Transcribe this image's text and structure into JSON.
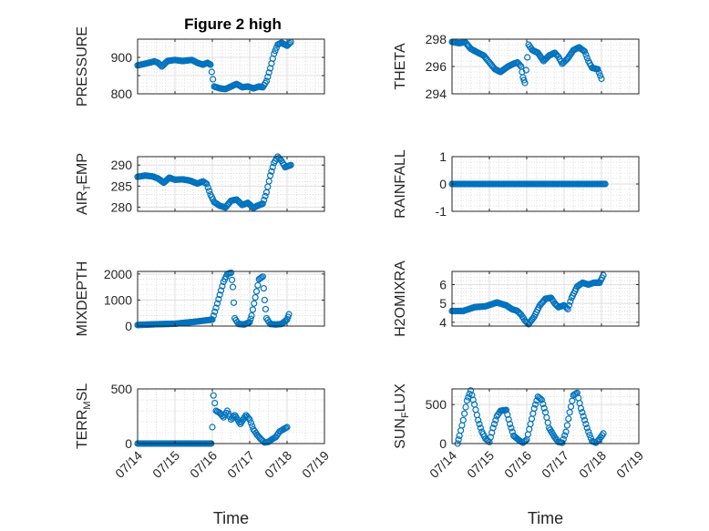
{
  "figure": {
    "title": "Figure 2 high",
    "x_axis_label": "Time",
    "x_tick_labels": [
      "07/14",
      "07/15",
      "07/16",
      "07/17",
      "07/18",
      "07/19"
    ],
    "marker_color": "#0072BD"
  },
  "chart_data": [
    {
      "type": "scatter",
      "title": "Figure 2 high",
      "ylabel": "PRESSURE",
      "ylabel_sub": "",
      "xlabel": "",
      "x_ticks": [
        "07/14",
        "07/15",
        "07/16",
        "07/17",
        "07/18",
        "07/19"
      ],
      "show_x_labels": false,
      "xlim": [
        0,
        5
      ],
      "ylim": [
        800,
        950
      ],
      "y_ticks": [
        800,
        850,
        900
      ],
      "y_tick_labels": [
        "800",
        "",
        "900"
      ],
      "grid": true,
      "minor_grid": true,
      "series": [
        {
          "keys": [
            [
              0,
              878
            ],
            [
              0.3,
              885
            ],
            [
              0.45,
              889
            ],
            [
              0.55,
              885
            ],
            [
              0.65,
              875
            ],
            [
              0.8,
              890
            ],
            [
              1.0,
              893
            ],
            [
              1.2,
              890
            ],
            [
              1.45,
              893
            ],
            [
              1.6,
              885
            ],
            [
              1.75,
              880
            ],
            [
              1.87,
              885
            ],
            [
              1.95,
              880
            ],
            [
              2.05,
              820
            ],
            [
              2.2,
              815
            ],
            [
              2.35,
              813
            ],
            [
              2.5,
              820
            ],
            [
              2.65,
              827
            ],
            [
              2.8,
              818
            ],
            [
              2.95,
              820
            ],
            [
              3.1,
              815
            ],
            [
              3.25,
              820
            ],
            [
              3.35,
              818
            ],
            [
              3.45,
              835
            ],
            [
              3.55,
              870
            ],
            [
              3.65,
              910
            ],
            [
              3.75,
              935
            ],
            [
              3.85,
              940
            ],
            [
              4.0,
              932
            ],
            [
              4.1,
              942
            ]
          ],
          "spacing": 0.03
        }
      ]
    },
    {
      "type": "scatter",
      "title": "",
      "ylabel": "THETA",
      "ylabel_sub": "",
      "xlabel": "",
      "x_ticks": [
        "07/14",
        "07/15",
        "07/16",
        "07/17",
        "07/18",
        "07/19"
      ],
      "show_x_labels": false,
      "xlim": [
        0,
        5
      ],
      "ylim": [
        294,
        298
      ],
      "y_ticks": [
        294,
        296,
        298
      ],
      "y_tick_labels": [
        "294",
        "296",
        "298"
      ],
      "grid": true,
      "minor_grid": true,
      "series": [
        {
          "keys": [
            [
              0,
              297.8
            ],
            [
              0.2,
              297.7
            ],
            [
              0.35,
              297.8
            ],
            [
              0.5,
              297.3
            ],
            [
              0.7,
              297.0
            ],
            [
              0.85,
              296.8
            ],
            [
              1.0,
              296.3
            ],
            [
              1.15,
              295.8
            ],
            [
              1.3,
              295.6
            ],
            [
              1.5,
              296.0
            ],
            [
              1.65,
              296.2
            ],
            [
              1.75,
              296.3
            ],
            [
              1.85,
              296.0
            ],
            [
              1.9,
              295.2
            ],
            [
              1.95,
              294.8
            ],
            [
              2.05,
              297.6
            ],
            [
              2.15,
              297.2
            ],
            [
              2.3,
              297.0
            ],
            [
              2.45,
              296.4
            ],
            [
              2.6,
              296.8
            ],
            [
              2.75,
              297.0
            ],
            [
              2.85,
              296.7
            ],
            [
              2.95,
              296.2
            ],
            [
              3.1,
              296.6
            ],
            [
              3.25,
              297.2
            ],
            [
              3.4,
              297.4
            ],
            [
              3.55,
              297.1
            ],
            [
              3.65,
              296.4
            ],
            [
              3.75,
              295.9
            ],
            [
              3.9,
              295.8
            ],
            [
              4.0,
              295.1
            ]
          ],
          "spacing": 0.03
        }
      ]
    },
    {
      "type": "scatter",
      "title": "",
      "ylabel": "AIR",
      "ylabel_sub": "T",
      "ylabel_after": "EMP",
      "xlabel": "",
      "x_ticks": [
        "07/14",
        "07/15",
        "07/16",
        "07/17",
        "07/18",
        "07/19"
      ],
      "show_x_labels": false,
      "xlim": [
        0,
        5
      ],
      "ylim": [
        279,
        292
      ],
      "y_ticks": [
        280,
        285,
        290
      ],
      "y_tick_labels": [
        "280",
        "285",
        "290"
      ],
      "grid": true,
      "minor_grid": true,
      "series": [
        {
          "keys": [
            [
              0,
              287.2
            ],
            [
              0.2,
              287.5
            ],
            [
              0.4,
              287.3
            ],
            [
              0.55,
              286.8
            ],
            [
              0.7,
              285.8
            ],
            [
              0.85,
              287.0
            ],
            [
              1.0,
              286.5
            ],
            [
              1.2,
              286.6
            ],
            [
              1.4,
              286.3
            ],
            [
              1.6,
              285.6
            ],
            [
              1.75,
              286.1
            ],
            [
              1.85,
              285.5
            ],
            [
              1.95,
              283.0
            ],
            [
              2.05,
              281.2
            ],
            [
              2.2,
              280.3
            ],
            [
              2.35,
              279.9
            ],
            [
              2.5,
              281.5
            ],
            [
              2.65,
              281.8
            ],
            [
              2.8,
              280.5
            ],
            [
              2.95,
              281.0
            ],
            [
              3.1,
              279.8
            ],
            [
              3.2,
              280.3
            ],
            [
              3.35,
              280.8
            ],
            [
              3.45,
              283.5
            ],
            [
              3.55,
              287.5
            ],
            [
              3.65,
              290.5
            ],
            [
              3.75,
              292.0
            ],
            [
              3.85,
              291.0
            ],
            [
              3.95,
              289.5
            ],
            [
              4.1,
              290.0
            ]
          ],
          "spacing": 0.03
        }
      ]
    },
    {
      "type": "scatter",
      "title": "",
      "ylabel": "RAINFALL",
      "ylabel_sub": "",
      "xlabel": "",
      "x_ticks": [
        "07/14",
        "07/15",
        "07/16",
        "07/17",
        "07/18",
        "07/19"
      ],
      "show_x_labels": false,
      "xlim": [
        0,
        5
      ],
      "ylim": [
        -1,
        1
      ],
      "y_ticks": [
        -1,
        0,
        1
      ],
      "y_tick_labels": [
        "-1",
        "0",
        "1"
      ],
      "grid": true,
      "minor_grid": true,
      "series": [
        {
          "keys": [
            [
              0,
              0
            ],
            [
              4.1,
              0
            ]
          ],
          "spacing": 0.03
        }
      ]
    },
    {
      "type": "scatter",
      "title": "",
      "ylabel": "MIXDEPTH",
      "ylabel_sub": "",
      "xlabel": "",
      "x_ticks": [
        "07/14",
        "07/15",
        "07/16",
        "07/17",
        "07/18",
        "07/19"
      ],
      "show_x_labels": false,
      "xlim": [
        0,
        5
      ],
      "ylim": [
        0,
        2100
      ],
      "y_ticks": [
        0,
        1000,
        2000
      ],
      "y_tick_labels": [
        "0",
        "1000",
        "2000"
      ],
      "grid": true,
      "minor_grid": true,
      "series": [
        {
          "keys": [
            [
              0,
              40
            ],
            [
              0.5,
              70
            ],
            [
              1.0,
              90
            ],
            [
              1.5,
              160
            ],
            [
              1.95,
              240
            ],
            [
              2.0,
              250
            ],
            [
              2.1,
              700
            ],
            [
              2.2,
              1200
            ],
            [
              2.3,
              1700
            ],
            [
              2.4,
              2000
            ],
            [
              2.5,
              2050
            ],
            [
              2.55,
              1500
            ],
            [
              2.6,
              300
            ],
            [
              2.7,
              80
            ],
            [
              2.85,
              60
            ],
            [
              3.0,
              150
            ],
            [
              3.05,
              400
            ],
            [
              3.15,
              1100
            ],
            [
              3.25,
              1800
            ],
            [
              3.35,
              1900
            ],
            [
              3.4,
              1000
            ],
            [
              3.45,
              300
            ],
            [
              3.55,
              80
            ],
            [
              3.7,
              60
            ],
            [
              3.85,
              80
            ],
            [
              4.0,
              250
            ],
            [
              4.05,
              450
            ]
          ],
          "spacing": 0.03
        }
      ]
    },
    {
      "type": "scatter",
      "title": "",
      "ylabel": "H2OMIXRA",
      "ylabel_sub": "",
      "xlabel": "",
      "x_ticks": [
        "07/14",
        "07/15",
        "07/16",
        "07/17",
        "07/18",
        "07/19"
      ],
      "show_x_labels": false,
      "xlim": [
        0,
        5
      ],
      "ylim": [
        3.8,
        6.7
      ],
      "y_ticks": [
        4,
        5,
        6
      ],
      "y_tick_labels": [
        "4",
        "5",
        "6"
      ],
      "grid": true,
      "minor_grid": true,
      "series": [
        {
          "keys": [
            [
              0,
              4.6
            ],
            [
              0.3,
              4.6
            ],
            [
              0.6,
              4.8
            ],
            [
              0.9,
              4.85
            ],
            [
              1.2,
              5.05
            ],
            [
              1.45,
              4.9
            ],
            [
              1.6,
              4.7
            ],
            [
              1.75,
              4.6
            ],
            [
              1.85,
              4.4
            ],
            [
              1.95,
              4.1
            ],
            [
              2.05,
              3.9
            ],
            [
              2.2,
              4.3
            ],
            [
              2.35,
              4.9
            ],
            [
              2.5,
              5.25
            ],
            [
              2.65,
              5.3
            ],
            [
              2.75,
              5.0
            ],
            [
              2.85,
              4.8
            ],
            [
              3.0,
              4.9
            ],
            [
              3.1,
              4.7
            ],
            [
              3.2,
              5.3
            ],
            [
              3.35,
              5.9
            ],
            [
              3.5,
              6.1
            ],
            [
              3.65,
              6.0
            ],
            [
              3.8,
              6.1
            ],
            [
              3.95,
              6.1
            ],
            [
              4.05,
              6.5
            ]
          ],
          "spacing": 0.03
        }
      ]
    },
    {
      "type": "scatter",
      "title": "",
      "ylabel": "TERR",
      "ylabel_sub": "M",
      "ylabel_after": "SL",
      "xlabel": "Time",
      "x_ticks": [
        "07/14",
        "07/15",
        "07/16",
        "07/17",
        "07/18",
        "07/19"
      ],
      "show_x_labels": true,
      "xlim": [
        0,
        5
      ],
      "ylim": [
        0,
        500
      ],
      "y_ticks": [
        0,
        500
      ],
      "y_tick_labels": [
        "0",
        "500"
      ],
      "grid": true,
      "minor_grid": true,
      "series": [
        {
          "keys": [
            [
              0,
              0
            ],
            [
              1.97,
              0
            ]
          ],
          "spacing": 0.03
        },
        {
          "keys": [
            [
              2.0,
              150
            ],
            [
              2.03,
              440
            ],
            [
              2.1,
              300
            ],
            [
              2.2,
              280
            ],
            [
              2.3,
              240
            ],
            [
              2.4,
              300
            ],
            [
              2.5,
              220
            ],
            [
              2.6,
              260
            ],
            [
              2.75,
              180
            ],
            [
              2.9,
              260
            ],
            [
              3.0,
              220
            ],
            [
              3.1,
              130
            ],
            [
              3.2,
              80
            ],
            [
              3.3,
              40
            ],
            [
              3.4,
              10
            ],
            [
              3.5,
              15
            ],
            [
              3.6,
              40
            ],
            [
              3.7,
              60
            ],
            [
              3.8,
              110
            ],
            [
              3.9,
              130
            ],
            [
              4.0,
              150
            ]
          ],
          "spacing": 0.03
        }
      ]
    },
    {
      "type": "scatter",
      "title": "",
      "ylabel": "SUN",
      "ylabel_sub": "F",
      "ylabel_after": "LUX",
      "xlabel": "Time",
      "x_ticks": [
        "07/14",
        "07/15",
        "07/16",
        "07/17",
        "07/18",
        "07/19"
      ],
      "show_x_labels": true,
      "xlim": [
        0,
        5
      ],
      "ylim": [
        0,
        700
      ],
      "y_ticks": [
        0,
        500
      ],
      "y_tick_labels": [
        "0",
        "500"
      ],
      "grid": true,
      "minor_grid": true,
      "series": [
        {
          "keys": [
            [
              0.15,
              0
            ],
            [
              0.2,
              100
            ],
            [
              0.3,
              300
            ],
            [
              0.4,
              550
            ],
            [
              0.5,
              680
            ],
            [
              0.6,
              500
            ],
            [
              0.7,
              300
            ],
            [
              0.8,
              150
            ],
            [
              0.9,
              60
            ],
            [
              1.0,
              20
            ],
            [
              1.1,
              200
            ],
            [
              1.2,
              350
            ],
            [
              1.3,
              420
            ],
            [
              1.45,
              430
            ],
            [
              1.55,
              250
            ],
            [
              1.65,
              100
            ],
            [
              1.8,
              40
            ],
            [
              1.9,
              10
            ],
            [
              2.0,
              50
            ],
            [
              2.1,
              250
            ],
            [
              2.2,
              450
            ],
            [
              2.3,
              600
            ],
            [
              2.4,
              560
            ],
            [
              2.5,
              400
            ],
            [
              2.6,
              200
            ],
            [
              2.75,
              80
            ],
            [
              2.85,
              20
            ],
            [
              2.95,
              10
            ],
            [
              3.05,
              150
            ],
            [
              3.15,
              400
            ],
            [
              3.25,
              620
            ],
            [
              3.35,
              650
            ],
            [
              3.45,
              450
            ],
            [
              3.55,
              300
            ],
            [
              3.65,
              150
            ],
            [
              3.75,
              30
            ],
            [
              3.85,
              10
            ],
            [
              3.95,
              60
            ],
            [
              4.05,
              130
            ]
          ],
          "spacing": 0.03
        }
      ]
    }
  ]
}
